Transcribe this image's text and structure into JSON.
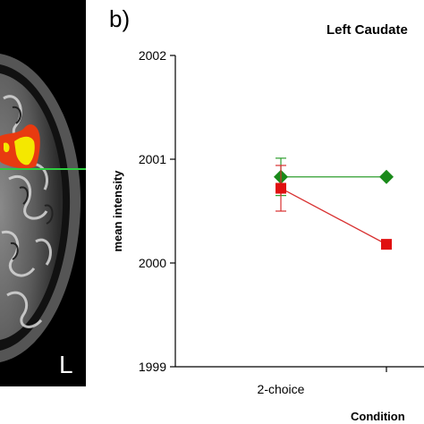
{
  "brain_panel": {
    "orientation_label": "L",
    "colors": {
      "activation_red": "#e83a10",
      "activation_yellow": "#f4e800",
      "crosshair": "#2ecc40"
    }
  },
  "chart_data": {
    "type": "line",
    "panel_label": "b)",
    "title": "Left Caudate",
    "xlabel": "Condition",
    "ylabel": "mean intensity",
    "categories": [
      "2-choice",
      ""
    ],
    "ylim": [
      1999,
      2002
    ],
    "yticks": [
      1999,
      2000,
      2001,
      2002
    ],
    "grid": false,
    "series": [
      {
        "color": "#1a8a1a",
        "line_color": "#2e9e2e",
        "marker": "diamond",
        "values": [
          2000.83,
          2000.83
        ],
        "error": [
          0.18,
          null
        ]
      },
      {
        "color": "#e01010",
        "line_color": "#d83030",
        "marker": "square",
        "values": [
          2000.72,
          2000.18
        ],
        "error": [
          0.22,
          null
        ]
      }
    ]
  }
}
